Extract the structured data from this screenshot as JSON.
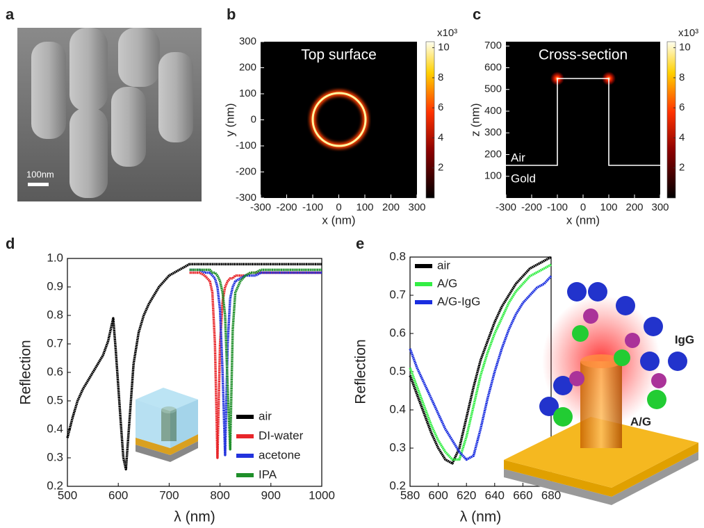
{
  "chart_data": [
    {
      "type": "image",
      "panel": "a",
      "scale_bar_label": "100nm"
    },
    {
      "type": "heatmap",
      "panel": "b",
      "annotation": "Top surface",
      "xlabel": "x (nm)",
      "ylabel": "y (nm)",
      "xlim": [
        -300,
        300
      ],
      "xticks": [
        -300,
        -200,
        -100,
        0,
        100,
        200,
        300
      ],
      "ylim": [
        -300,
        300
      ],
      "yticks": [
        -300,
        -200,
        -100,
        0,
        100,
        200,
        300
      ],
      "clim": [
        0,
        10.4
      ],
      "cticks": [
        2,
        4,
        6,
        8,
        10
      ],
      "colorbar_label": "x10³"
    },
    {
      "type": "heatmap",
      "panel": "c",
      "annotation": "Cross-section",
      "region_labels": [
        "Air",
        "Gold"
      ],
      "xlabel": "x (nm)",
      "ylabel": "z (nm)",
      "xlim": [
        -300,
        300
      ],
      "xticks": [
        -300,
        -200,
        -100,
        0,
        100,
        200,
        300
      ],
      "ylim": [
        0,
        720
      ],
      "yticks": [
        100,
        200,
        300,
        400,
        500,
        600,
        700
      ],
      "clim": [
        0,
        10.4
      ],
      "cticks": [
        2,
        4,
        6,
        8,
        10
      ],
      "colorbar_label": "x10³"
    },
    {
      "type": "line",
      "panel": "d",
      "xlabel": "λ (nm)",
      "ylabel": "Reflection",
      "x": [
        500,
        510,
        520,
        530,
        540,
        550,
        560,
        570,
        580,
        585,
        590,
        595,
        600,
        605,
        610,
        615,
        620,
        630,
        640,
        650,
        660,
        670,
        680,
        690,
        700,
        710,
        720,
        730,
        740,
        750,
        760,
        770,
        780,
        785,
        790,
        795,
        800,
        805,
        810,
        815,
        820,
        825,
        830,
        840,
        850,
        860,
        870,
        880,
        890,
        900,
        910,
        920,
        930,
        940,
        950,
        960,
        970,
        980,
        990,
        1000
      ],
      "series": [
        {
          "name": "air",
          "color": "#000000",
          "values": [
            0.37,
            0.44,
            0.5,
            0.54,
            0.57,
            0.6,
            0.63,
            0.66,
            0.71,
            0.75,
            0.79,
            0.68,
            0.55,
            0.42,
            0.3,
            0.26,
            0.38,
            0.63,
            0.74,
            0.8,
            0.84,
            0.87,
            0.9,
            0.92,
            0.94,
            0.95,
            0.96,
            0.97,
            0.98,
            0.98,
            0.98,
            0.98,
            0.98,
            0.98,
            0.98,
            0.98,
            0.98,
            0.98,
            0.98,
            0.98,
            0.98,
            0.98,
            0.98,
            0.98,
            0.98,
            0.98,
            0.98,
            0.98,
            0.98,
            0.98,
            0.98,
            0.98,
            0.98,
            0.98,
            0.98,
            0.98,
            0.98,
            0.98,
            0.98,
            0.98
          ]
        },
        {
          "name": "DI-water",
          "color": "#e8262a",
          "values": [
            null,
            null,
            null,
            null,
            null,
            null,
            null,
            null,
            null,
            null,
            null,
            null,
            null,
            null,
            null,
            null,
            null,
            null,
            null,
            null,
            null,
            null,
            null,
            null,
            null,
            null,
            null,
            null,
            0.95,
            0.95,
            0.95,
            0.94,
            0.92,
            0.88,
            0.7,
            0.3,
            0.7,
            0.85,
            0.9,
            0.92,
            0.93,
            0.93,
            0.94,
            0.94,
            0.94,
            0.95,
            0.95,
            0.95,
            0.95,
            0.95,
            0.95,
            0.95,
            0.95,
            0.95,
            0.95,
            0.95,
            0.95,
            0.95,
            0.95,
            0.95
          ]
        },
        {
          "name": "acetone",
          "color": "#2233dd",
          "values": [
            null,
            null,
            null,
            null,
            null,
            null,
            null,
            null,
            null,
            null,
            null,
            null,
            null,
            null,
            null,
            null,
            null,
            null,
            null,
            null,
            null,
            null,
            null,
            null,
            null,
            null,
            null,
            null,
            0.96,
            0.96,
            0.96,
            0.95,
            0.95,
            0.94,
            0.93,
            0.9,
            0.82,
            0.6,
            0.31,
            0.7,
            0.86,
            0.9,
            0.92,
            0.93,
            0.94,
            0.94,
            0.94,
            0.95,
            0.95,
            0.95,
            0.95,
            0.95,
            0.95,
            0.95,
            0.95,
            0.95,
            0.95,
            0.95,
            0.95,
            0.95
          ]
        },
        {
          "name": "IPA",
          "color": "#1f8f2a",
          "values": [
            null,
            null,
            null,
            null,
            null,
            null,
            null,
            null,
            null,
            null,
            null,
            null,
            null,
            null,
            null,
            null,
            null,
            null,
            null,
            null,
            null,
            null,
            null,
            null,
            null,
            null,
            null,
            null,
            0.96,
            0.96,
            0.96,
            0.96,
            0.96,
            0.95,
            0.95,
            0.94,
            0.92,
            0.88,
            0.8,
            0.55,
            0.33,
            0.75,
            0.88,
            0.92,
            0.94,
            0.95,
            0.95,
            0.96,
            0.96,
            0.96,
            0.96,
            0.96,
            0.96,
            0.96,
            0.96,
            0.96,
            0.96,
            0.96,
            0.96,
            0.96
          ]
        }
      ],
      "xlim": [
        500,
        1000
      ],
      "xticks": [
        500,
        600,
        700,
        800,
        900,
        1000
      ],
      "ylim": [
        0.2,
        1
      ],
      "yticks": [
        0.2,
        0.3,
        0.4,
        0.5,
        0.6,
        0.7,
        0.8,
        0.9,
        {
          "value": 1,
          "label": "1.0"
        }
      ],
      "legend": "lower right"
    },
    {
      "type": "line",
      "panel": "e",
      "xlabel": "λ (nm)",
      "ylabel": "Reflection",
      "x": [
        580,
        585,
        590,
        595,
        600,
        605,
        610,
        615,
        620,
        625,
        630,
        635,
        640,
        645,
        650,
        655,
        660,
        665,
        670,
        675,
        680
      ],
      "series": [
        {
          "name": "air",
          "color": "#000000",
          "values": [
            0.49,
            0.44,
            0.39,
            0.34,
            0.3,
            0.27,
            0.26,
            0.3,
            0.38,
            0.46,
            0.53,
            0.58,
            0.63,
            0.67,
            0.7,
            0.73,
            0.75,
            0.77,
            0.78,
            0.79,
            0.8
          ]
        },
        {
          "name": "A/G",
          "color": "#33ee44",
          "values": [
            0.51,
            0.46,
            0.41,
            0.36,
            0.32,
            0.29,
            0.27,
            0.27,
            0.33,
            0.41,
            0.49,
            0.55,
            0.6,
            0.64,
            0.68,
            0.71,
            0.73,
            0.75,
            0.76,
            0.77,
            0.78
          ]
        },
        {
          "name": "A/G-IgG",
          "color": "#1a2ee0",
          "values": [
            0.56,
            0.51,
            0.47,
            0.43,
            0.39,
            0.35,
            0.32,
            0.29,
            0.27,
            0.28,
            0.35,
            0.43,
            0.5,
            0.56,
            0.61,
            0.65,
            0.68,
            0.7,
            0.72,
            0.73,
            0.75
          ]
        }
      ],
      "xlim": [
        580,
        680
      ],
      "xticks": [
        580,
        600,
        620,
        640,
        660,
        680
      ],
      "ylim": [
        0.2,
        0.8
      ],
      "yticks": [
        0.2,
        0.3,
        0.4,
        0.5,
        0.6,
        0.7,
        0.8
      ],
      "legend": "upper left",
      "illustration_labels": [
        "IgG",
        "A/G"
      ]
    }
  ]
}
